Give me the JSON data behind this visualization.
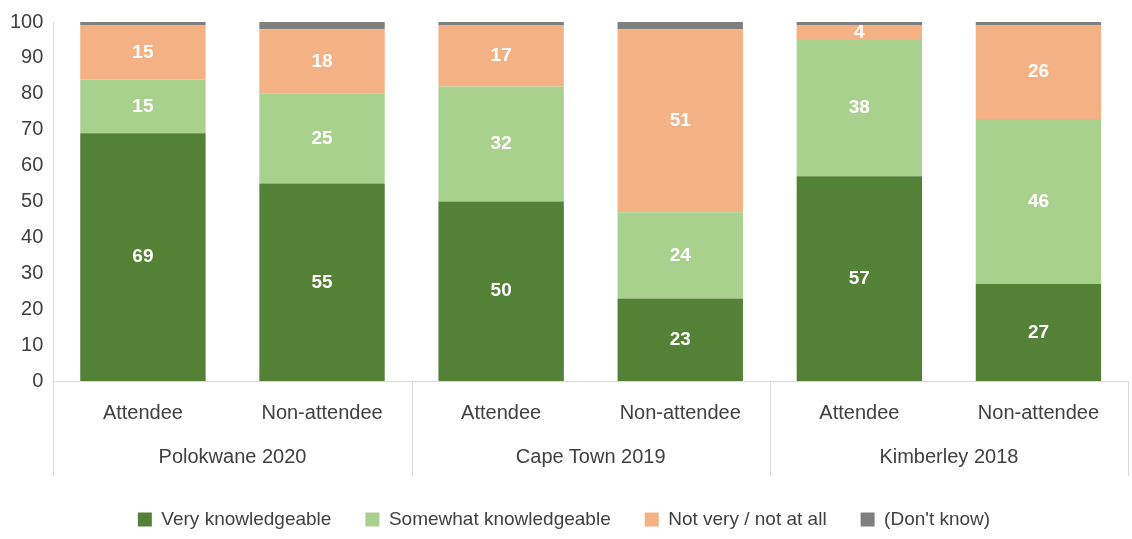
{
  "chart_data": {
    "type": "bar",
    "stacked": true,
    "categories": [
      "Attendee",
      "Non-attendee",
      "Attendee",
      "Non-attendee",
      "Attendee",
      "Non-attendee"
    ],
    "annotations": [
      "Polokwane 2020",
      "Cape Town 2019",
      "Kimberley 2018"
    ],
    "series": [
      {
        "name": "Very knowledgeable",
        "color": "#538135",
        "values": [
          69,
          55,
          50,
          23,
          57,
          27
        ],
        "value_labels": [
          "69",
          "55",
          "50",
          "23",
          "57",
          "27"
        ]
      },
      {
        "name": "Somewhat knowledgeable",
        "color": "#a9d18e",
        "values": [
          15,
          25,
          32,
          24,
          38,
          46
        ],
        "value_labels": [
          "15",
          "25",
          "32",
          "24",
          "38",
          "46"
        ]
      },
      {
        "name": "Not very / not at all",
        "color": "#f4b183",
        "values": [
          15,
          18,
          17,
          51,
          4,
          26
        ],
        "value_labels": [
          "15",
          "18",
          "17",
          "51",
          "4",
          "26"
        ]
      },
      {
        "name": "(Don't know)",
        "color": "#7f7f7f",
        "values": [
          1,
          2,
          1,
          2,
          1,
          1
        ]
      }
    ],
    "ylim": [
      0,
      100
    ],
    "yticks": [
      0,
      10,
      20,
      30,
      40,
      50,
      60,
      70,
      80,
      90,
      100
    ],
    "grid": false,
    "legend": "bottom"
  }
}
